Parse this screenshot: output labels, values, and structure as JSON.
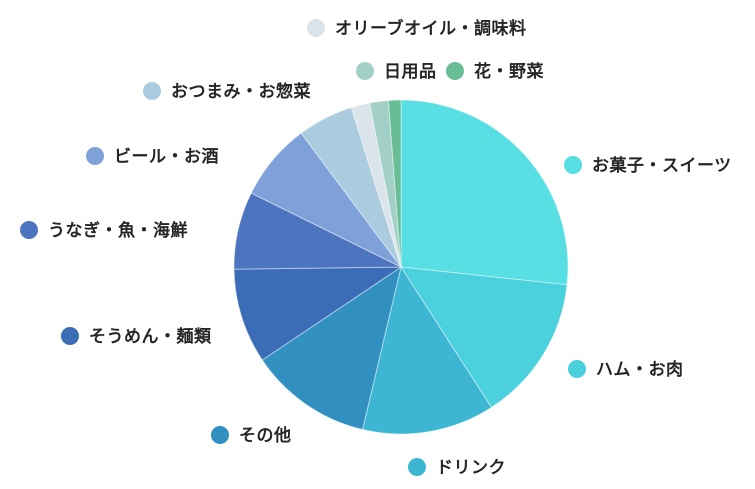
{
  "chart_data": {
    "type": "pie",
    "title": "",
    "start_angle_deg": 0,
    "direction": "clockwise",
    "legend_position": "around",
    "segments": [
      {
        "label": "お菓子・スイーツ",
        "percent": 26.7,
        "color": "#57DFE4"
      },
      {
        "label": "ハム・お肉",
        "percent": 14.2,
        "color": "#4BD0DD"
      },
      {
        "label": "ドリンク",
        "percent": 12.8,
        "color": "#3CB6D3"
      },
      {
        "label": "その他",
        "percent": 11.9,
        "color": "#3190C0"
      },
      {
        "label": "そうめん・麺類",
        "percent": 9.2,
        "color": "#3A6DB5"
      },
      {
        "label": "うなぎ・魚・海鮮",
        "percent": 7.5,
        "color": "#4C74BF"
      },
      {
        "label": "ビール・お酒",
        "percent": 7.5,
        "color": "#7FA1DA"
      },
      {
        "label": "おつまみ・お惣菜",
        "percent": 5.4,
        "color": "#ABCBDF"
      },
      {
        "label": "オリーブオイル・調味料",
        "percent": 1.8,
        "color": "#DBE4EB"
      },
      {
        "label": "日用品",
        "percent": 1.8,
        "color": "#A2D0C7"
      },
      {
        "label": "花・野菜",
        "percent": 1.2,
        "color": "#69BD95"
      }
    ]
  }
}
